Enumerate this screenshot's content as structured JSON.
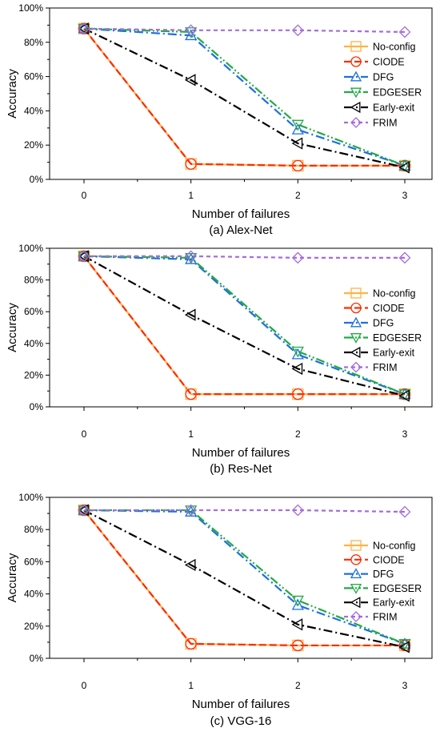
{
  "legend": [
    {
      "name": "No-config",
      "color": "#FFB347",
      "marker": "square",
      "dash": "solid"
    },
    {
      "name": "CIODE",
      "color": "#FF2A00",
      "marker": "circle",
      "dash": "dash"
    },
    {
      "name": "DFG",
      "color": "#1F6FE0",
      "marker": "triangle-up",
      "dash": "dashdot"
    },
    {
      "name": "EDGESER",
      "color": "#22AA44",
      "marker": "triangle-down",
      "dash": "dashdotdot"
    },
    {
      "name": "Early-exit",
      "color": "#000000",
      "marker": "triangle-left",
      "dash": "dashdot"
    },
    {
      "name": "FRIM",
      "color": "#A56BE0",
      "marker": "diamond",
      "dash": "shortdash"
    }
  ],
  "chart_data": [
    {
      "type": "line",
      "caption": "(a) Alex-Net",
      "xlabel": "Number of failures",
      "ylabel": "Accuracy",
      "x": [
        0,
        1,
        2,
        3
      ],
      "xticks": [
        "0",
        "1",
        "2",
        "3"
      ],
      "ylim": [
        0,
        100
      ],
      "yticks": [
        "0%",
        "20%",
        "40%",
        "60%",
        "80%",
        "100%"
      ],
      "legend_position": "right",
      "series": [
        {
          "name": "No-config",
          "values": [
            88,
            9,
            8,
            8
          ]
        },
        {
          "name": "CIODE",
          "values": [
            88,
            9,
            8,
            8
          ]
        },
        {
          "name": "DFG",
          "values": [
            88,
            84,
            29,
            8
          ]
        },
        {
          "name": "EDGESER",
          "values": [
            88,
            86,
            32,
            8
          ]
        },
        {
          "name": "Early-exit",
          "values": [
            88,
            58,
            21,
            7
          ]
        },
        {
          "name": "FRIM",
          "values": [
            88,
            87,
            87,
            86
          ]
        }
      ]
    },
    {
      "type": "line",
      "caption": "(b) Res-Net",
      "xlabel": "Number of failures",
      "ylabel": "Accuracy",
      "x": [
        0,
        1,
        2,
        3
      ],
      "xticks": [
        "0",
        "1",
        "2",
        "3"
      ],
      "ylim": [
        0,
        100
      ],
      "yticks": [
        "0%",
        "20%",
        "40%",
        "60%",
        "80%",
        "100%"
      ],
      "legend_position": "right",
      "series": [
        {
          "name": "No-config",
          "values": [
            95,
            8,
            8,
            8
          ]
        },
        {
          "name": "CIODE",
          "values": [
            95,
            8,
            8,
            8
          ]
        },
        {
          "name": "DFG",
          "values": [
            95,
            93,
            33,
            8
          ]
        },
        {
          "name": "EDGESER",
          "values": [
            95,
            94,
            35,
            8
          ]
        },
        {
          "name": "Early-exit",
          "values": [
            95,
            58,
            24,
            7
          ]
        },
        {
          "name": "FRIM",
          "values": [
            95,
            95,
            94,
            94
          ]
        }
      ]
    },
    {
      "type": "line",
      "caption": "(c) VGG-16",
      "xlabel": "Number of failures",
      "ylabel": "Accuracy",
      "x": [
        0,
        1,
        2,
        3
      ],
      "xticks": [
        "0",
        "1",
        "2",
        "3"
      ],
      "ylim": [
        0,
        100
      ],
      "yticks": [
        "0%",
        "20%",
        "40%",
        "60%",
        "80%",
        "100%"
      ],
      "legend_position": "right",
      "series": [
        {
          "name": "No-config",
          "values": [
            92,
            9,
            8,
            8
          ]
        },
        {
          "name": "CIODE",
          "values": [
            92,
            9,
            8,
            8
          ]
        },
        {
          "name": "DFG",
          "values": [
            92,
            91,
            33,
            9
          ]
        },
        {
          "name": "EDGESER",
          "values": [
            92,
            92,
            36,
            9
          ]
        },
        {
          "name": "Early-exit",
          "values": [
            92,
            58,
            21,
            7
          ]
        },
        {
          "name": "FRIM",
          "values": [
            92,
            92,
            92,
            91
          ]
        }
      ]
    }
  ]
}
